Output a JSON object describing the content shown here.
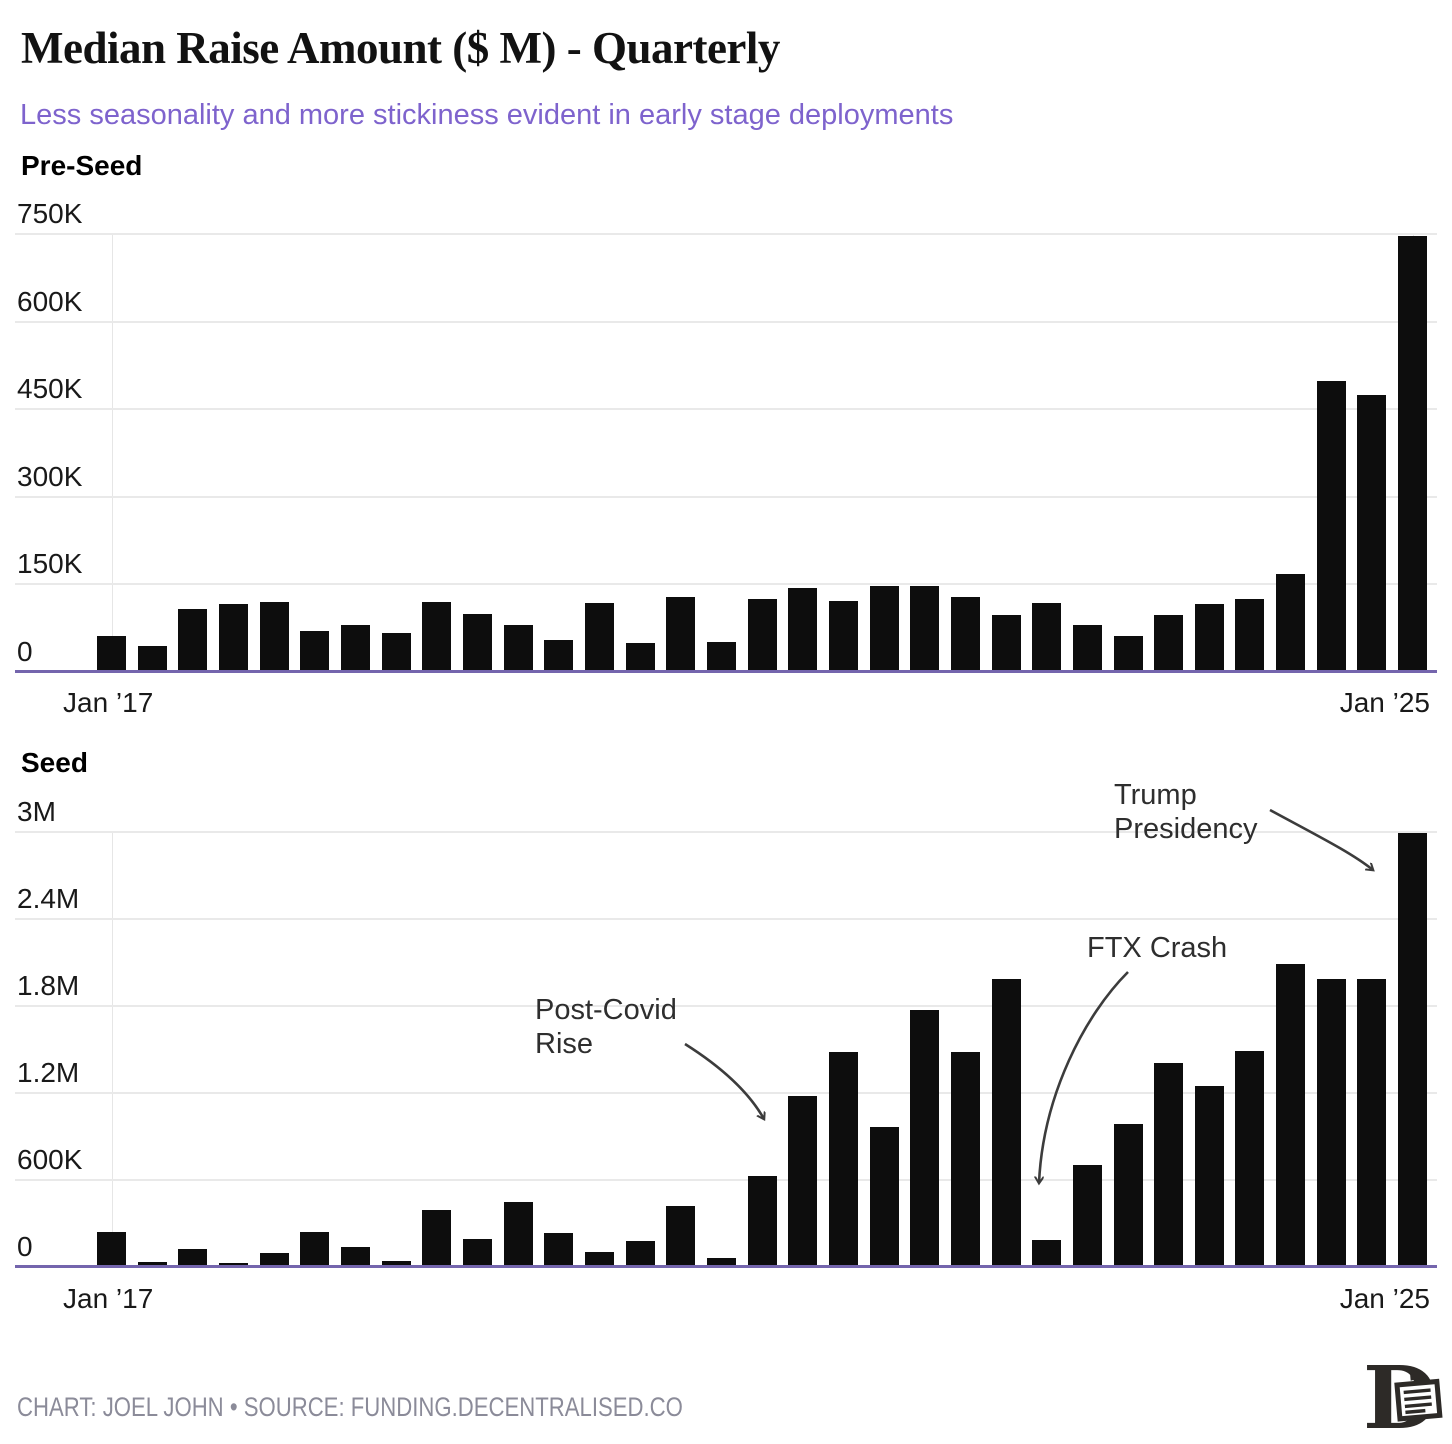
{
  "title": "Median Raise Amount ($ M) - Quarterly",
  "subtitle": "Less seasonality and more stickiness evident in early stage deployments",
  "footer": {
    "credit": "CHART: JOEL JOHN • SOURCE: FUNDING.DECENTRALISED.CO"
  },
  "logo": {
    "name": "decentralised-co-logo",
    "letter": "D"
  },
  "colors": {
    "accent_purple": "#7e63cd",
    "axis_purple": "#7465ad",
    "bar_black": "#0d0d0d",
    "gridline_gray": "#e9e9e9",
    "annotation_gray": "#2e2e2e",
    "footer_gray": "#8b8b99"
  },
  "chart_data": [
    {
      "type": "bar",
      "title": "Pre-Seed",
      "frequency": "quarterly",
      "grid": true,
      "ylim": [
        0,
        750000
      ],
      "x_tick_labels": [
        "Jan ’17",
        "Jan ’25"
      ],
      "yticks": [
        {
          "value": 750000,
          "label": "750K"
        },
        {
          "value": 600000,
          "label": "600K"
        },
        {
          "value": 450000,
          "label": "450K"
        },
        {
          "value": 300000,
          "label": "300K"
        },
        {
          "value": 150000,
          "label": "150K"
        },
        {
          "value": 0,
          "label": "0"
        }
      ],
      "x": [
        "2017 Q1",
        "2017 Q2",
        "2017 Q3",
        "2017 Q4",
        "2018 Q1",
        "2018 Q2",
        "2018 Q3",
        "2018 Q4",
        "2019 Q1",
        "2019 Q2",
        "2019 Q3",
        "2019 Q4",
        "2020 Q1",
        "2020 Q2",
        "2020 Q3",
        "2020 Q4",
        "2021 Q1",
        "2021 Q2",
        "2021 Q3",
        "2021 Q4",
        "2022 Q1",
        "2022 Q2",
        "2022 Q3",
        "2022 Q4",
        "2023 Q1",
        "2023 Q2",
        "2023 Q3",
        "2023 Q4",
        "2024 Q1",
        "2024 Q2",
        "2024 Q3",
        "2024 Q4",
        "2025 Q1"
      ],
      "values": [
        62000,
        45000,
        108000,
        117000,
        120000,
        71000,
        81000,
        66000,
        120000,
        100000,
        80000,
        54000,
        118000,
        50000,
        128000,
        51000,
        125000,
        144000,
        122000,
        148000,
        148000,
        128000,
        97000,
        118000,
        80000,
        61000,
        98000,
        116000,
        125000,
        168000,
        499000,
        474000,
        746000
      ]
    },
    {
      "type": "bar",
      "title": "Seed",
      "frequency": "quarterly",
      "grid": true,
      "ylim": [
        0,
        3000000
      ],
      "x_tick_labels": [
        "Jan ’17",
        "Jan ’25"
      ],
      "yticks": [
        {
          "value": 3000000,
          "label": "3M"
        },
        {
          "value": 2400000,
          "label": "2.4M"
        },
        {
          "value": 1800000,
          "label": "1.8M"
        },
        {
          "value": 1200000,
          "label": "1.2M"
        },
        {
          "value": 600000,
          "label": "600K"
        },
        {
          "value": 0,
          "label": "0"
        }
      ],
      "x": [
        "2017 Q1",
        "2017 Q2",
        "2017 Q3",
        "2017 Q4",
        "2018 Q1",
        "2018 Q2",
        "2018 Q3",
        "2018 Q4",
        "2019 Q1",
        "2019 Q2",
        "2019 Q3",
        "2019 Q4",
        "2020 Q1",
        "2020 Q2",
        "2020 Q3",
        "2020 Q4",
        "2021 Q1",
        "2021 Q2",
        "2021 Q3",
        "2021 Q4",
        "2022 Q1",
        "2022 Q2",
        "2022 Q3",
        "2022 Q4",
        "2023 Q1",
        "2023 Q2",
        "2023 Q3",
        "2023 Q4",
        "2024 Q1",
        "2024 Q2",
        "2024 Q3",
        "2024 Q4",
        "2025 Q1"
      ],
      "values": [
        240000,
        35000,
        125000,
        30000,
        95000,
        240000,
        140000,
        40000,
        390000,
        190000,
        450000,
        235000,
        105000,
        180000,
        420000,
        65000,
        630000,
        1180000,
        1480000,
        965000,
        1775000,
        1480000,
        1985000,
        185000,
        705000,
        985000,
        1410000,
        1245000,
        1490000,
        2090000,
        1985000,
        1985000,
        2990000
      ],
      "annotations": [
        {
          "lines": [
            "Post-Covid",
            "Rise"
          ],
          "points_to": "2021 Q1"
        },
        {
          "lines": [
            "FTX Crash"
          ],
          "points_to": "2022 Q4"
        },
        {
          "lines": [
            "Trump",
            "Presidency"
          ],
          "points_to": "2025 Q1"
        }
      ]
    }
  ]
}
